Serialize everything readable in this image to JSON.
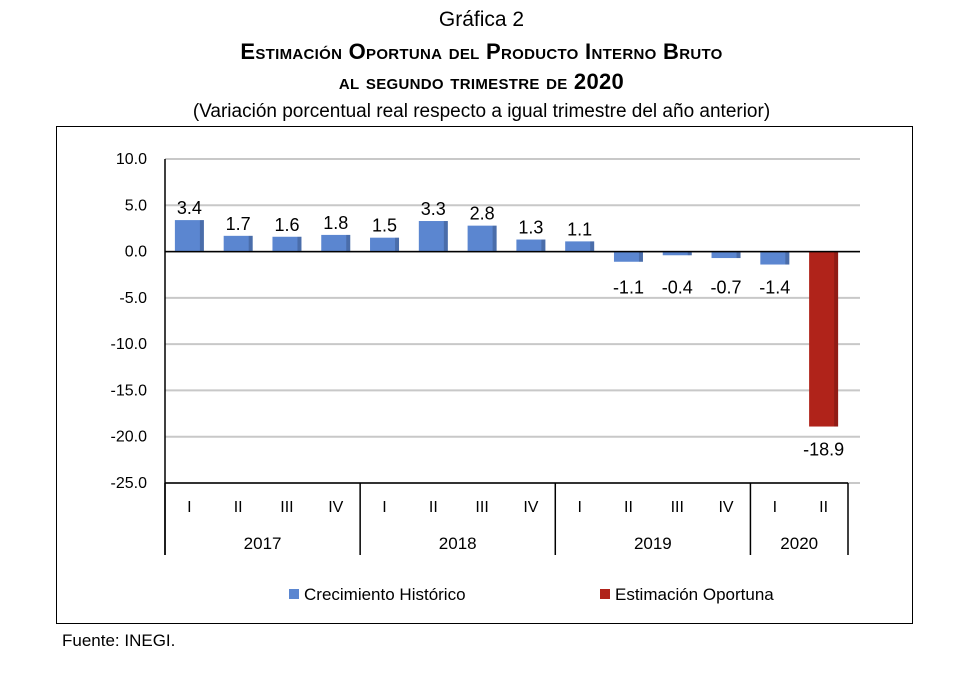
{
  "header": {
    "label": "Gráfica 2",
    "title": "Estimación Oportuna del Producto Interno Bruto",
    "subtitle": "al segundo trimestre de 2020",
    "note": "(Variación porcentual real respecto a igual trimestre del año anterior)"
  },
  "source": "Fuente: INEGI.",
  "colors": {
    "historic": "#5b86d0",
    "estimate": "#b0231a"
  },
  "chart_data": {
    "type": "bar",
    "ylim": [
      -25,
      10
    ],
    "yticks": [
      10,
      5,
      0,
      -5,
      -10,
      -15,
      -20,
      -25
    ],
    "ytick_labels": [
      "10.0",
      "5.0",
      "0.0",
      "-5.0",
      "-10.0",
      "-15.0",
      "-20.0",
      "-25.0"
    ],
    "grid": true,
    "legend_position": "bottom",
    "categories": [
      "I",
      "II",
      "III",
      "IV",
      "I",
      "II",
      "III",
      "IV",
      "I",
      "II",
      "III",
      "IV",
      "I",
      "II"
    ],
    "groups": [
      {
        "label": "2017",
        "count": 4
      },
      {
        "label": "2018",
        "count": 4
      },
      {
        "label": "2019",
        "count": 4
      },
      {
        "label": "2020",
        "count": 2
      }
    ],
    "series": [
      {
        "name": "Crecimiento  Histórico",
        "values": [
          3.4,
          1.7,
          1.6,
          1.8,
          1.5,
          3.3,
          2.8,
          1.3,
          1.1,
          -1.1,
          -0.4,
          -0.7,
          -1.4,
          null
        ]
      },
      {
        "name": "Estimación Oportuna",
        "values": [
          null,
          null,
          null,
          null,
          null,
          null,
          null,
          null,
          null,
          null,
          null,
          null,
          null,
          -18.9
        ]
      }
    ],
    "data_labels": [
      "3.4",
      "1.7",
      "1.6",
      "1.8",
      "1.5",
      "3.3",
      "2.8",
      "1.3",
      "1.1",
      "-1.1",
      "-0.4",
      "-0.7",
      "-1.4",
      "-18.9"
    ]
  }
}
